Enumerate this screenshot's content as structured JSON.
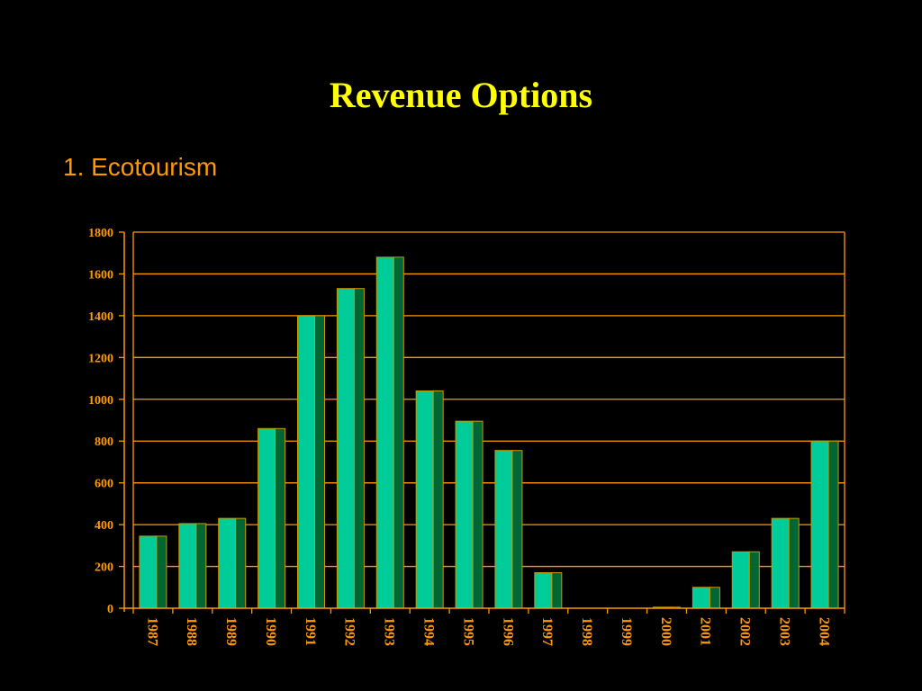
{
  "slide": {
    "title": "Revenue Options",
    "subtitle": "1.  Ecotourism"
  },
  "colors": {
    "background": "#000000",
    "title": "#ffff00",
    "text_accent": "#ff9900",
    "bar_front": "#00cc99",
    "bar_side": "#006633",
    "bar_outline": "#cc9900",
    "grid": "#ff9900"
  },
  "chart_data": {
    "type": "bar",
    "title": "",
    "xlabel": "",
    "ylabel": "",
    "categories": [
      "1987",
      "1988",
      "1989",
      "1990",
      "1991",
      "1992",
      "1993",
      "1994",
      "1995",
      "1996",
      "1997",
      "1998",
      "1999",
      "2000",
      "2001",
      "2002",
      "2003",
      "2004"
    ],
    "values": [
      345,
      405,
      430,
      860,
      1400,
      1530,
      1680,
      1040,
      895,
      755,
      170,
      0,
      0,
      5,
      100,
      270,
      430,
      800
    ],
    "ylim": [
      0,
      1800
    ],
    "yticks": [
      "0",
      "200",
      "400",
      "600",
      "800",
      "1000",
      "1200",
      "1400",
      "1600",
      "1800"
    ],
    "grid": true,
    "legend": "none",
    "style": "3d-bar"
  }
}
